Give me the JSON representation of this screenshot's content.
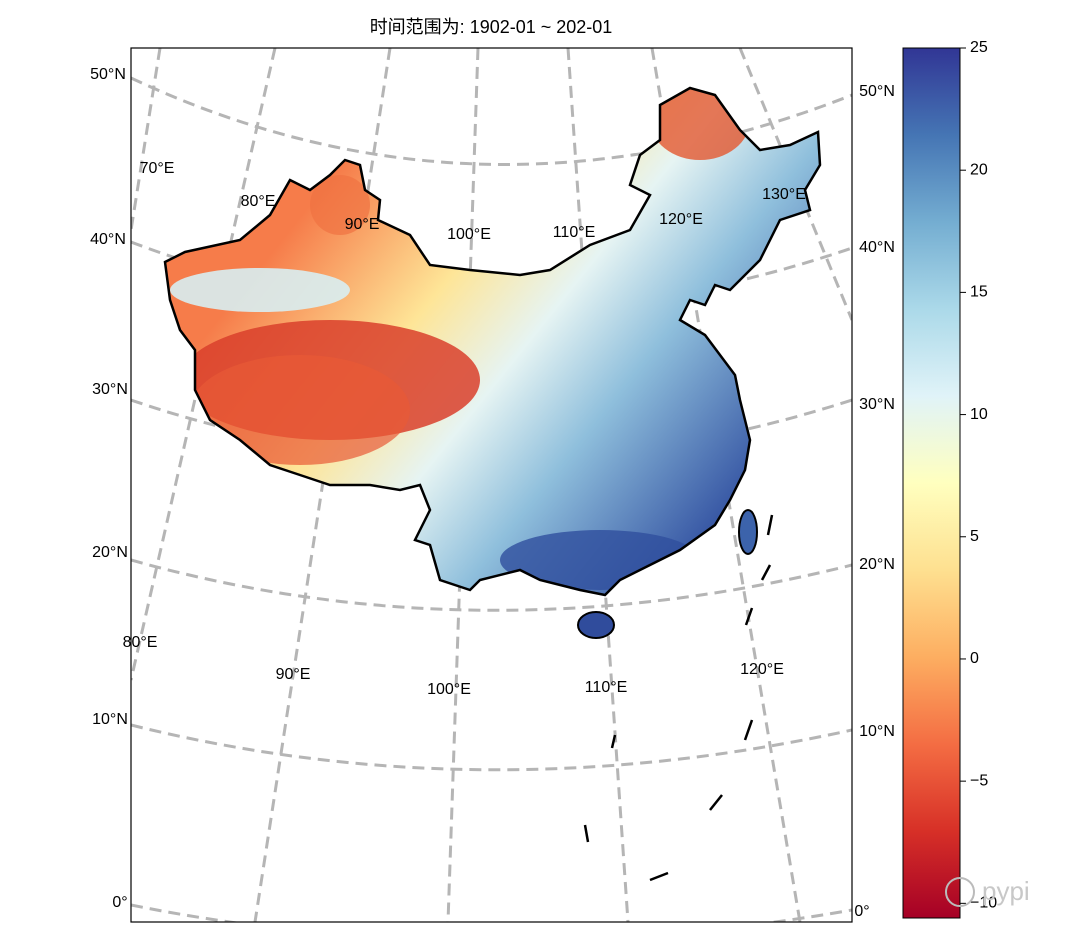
{
  "title": "时间范围为: 1902-01 ~ 202-01",
  "map": {
    "lat_labels_left": [
      "50°N",
      "40°N",
      "30°N",
      "20°N",
      "10°N",
      "0°"
    ],
    "lat_labels_right": [
      "50°N",
      "40°N",
      "30°N",
      "20°N",
      "10°N",
      "0°"
    ],
    "lon_labels_top": [
      "70°E",
      "80°E",
      "90°E",
      "100°E",
      "110°E",
      "120°E",
      "130°E"
    ],
    "lon_labels_bottom": [
      "80°E",
      "90°E",
      "100°E",
      "110°E",
      "120°E"
    ]
  },
  "colorbar": {
    "colormap": "RdYlBu",
    "lim": [
      -10.6,
      25
    ],
    "ticks": [
      {
        "value": -10,
        "label": "−10"
      },
      {
        "value": -5,
        "label": "−5"
      },
      0,
      5,
      10,
      15,
      20,
      25
    ]
  },
  "watermark": "pypi"
}
